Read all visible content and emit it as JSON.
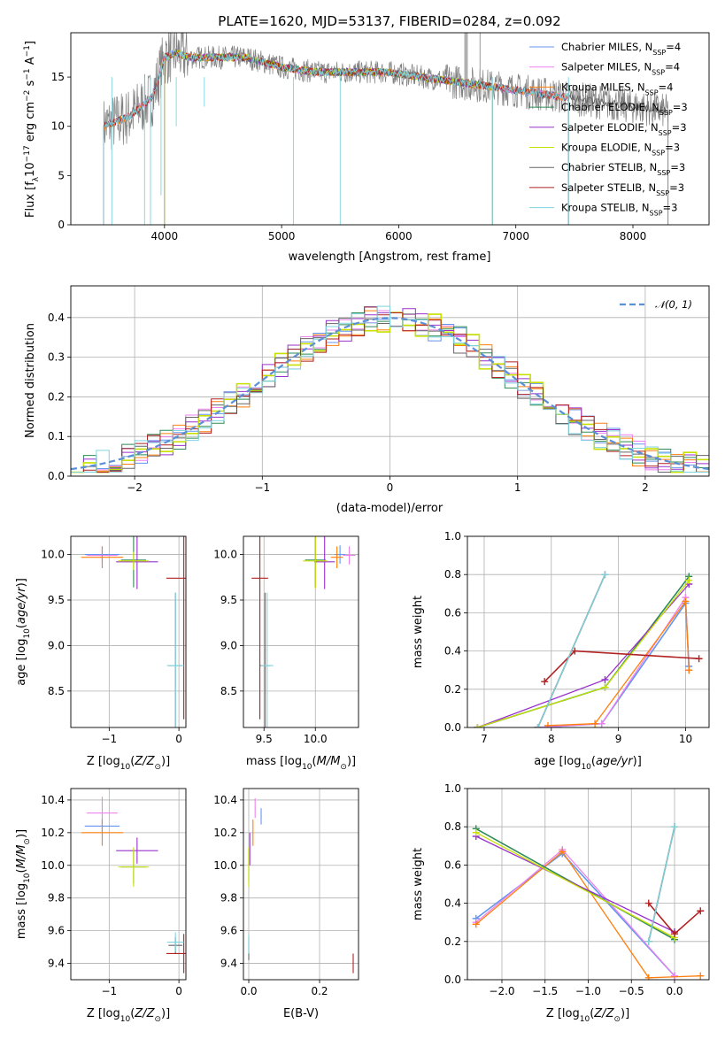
{
  "title": "PLATE=1620, MJD=53137, FIBERID=0284, z=0.092",
  "colors": {
    "Chabrier MILES": "#6495ed",
    "Salpeter MILES": "#ee82ee",
    "Kroupa MILES": "#ff7f0e",
    "Chabrier ELODIE": "#2e8b57",
    "Salpeter ELODIE": "#9932cc",
    "Kroupa ELODIE": "#c8e000",
    "Chabrier STELIB": "#666666",
    "Salpeter STELIB": "#b22222",
    "Kroupa STELIB": "#7fd3dd",
    "data": "#808080",
    "normal": "#5b8fd6"
  },
  "chart_data": [
    {
      "type": "line",
      "xlabel": "wavelength [Angstrom, rest frame]",
      "ylabel": "Flux [fλ10⁻¹⁷ erg cm⁻² s⁻¹ A⁻¹]",
      "xlim": [
        3200,
        8650
      ],
      "ylim": [
        0,
        19.5
      ],
      "xticks": [
        4000,
        5000,
        6000,
        7000,
        8000
      ],
      "yticks": [
        0,
        5,
        10,
        15
      ],
      "grid": false,
      "legend_position": "upper-right",
      "continuum_knots": {
        "x": [
          3480,
          3700,
          3900,
          4000,
          4100,
          4200,
          4400,
          4700,
          5000,
          5300,
          5600,
          5900,
          6200,
          6500,
          6800,
          7100,
          7400,
          7700,
          8000,
          8300
        ],
        "y": [
          10,
          11,
          13,
          17,
          17.5,
          17,
          17,
          17,
          16,
          15.5,
          15.5,
          15.5,
          15,
          14.5,
          14,
          13.5,
          13,
          12.5,
          12,
          11.5
        ]
      },
      "series": [
        {
          "name": "Chabrier MILES, N_SSP=4",
          "x_range": [
            3480,
            7450
          ]
        },
        {
          "name": "Salpeter MILES, N_SSP=4",
          "x_range": [
            3480,
            7450
          ]
        },
        {
          "name": "Kroupa MILES, N_SSP=4",
          "x_range": [
            3480,
            7450
          ]
        },
        {
          "name": "Chabrier ELODIE, N_SSP=3",
          "x_range": [
            4000,
            6800
          ]
        },
        {
          "name": "Salpeter ELODIE, N_SSP=3",
          "x_range": [
            4000,
            6800
          ]
        },
        {
          "name": "Kroupa ELODIE, N_SSP=3",
          "x_range": [
            4000,
            6800
          ]
        },
        {
          "name": "Chabrier STELIB, N_SSP=3",
          "x_range": [
            3480,
            8300
          ]
        },
        {
          "name": "Salpeter STELIB, N_SSP=3",
          "x_range": [
            3480,
            7450
          ]
        },
        {
          "name": "Kroupa STELIB, N_SSP=3",
          "x_range": [
            3480,
            7450
          ]
        }
      ]
    },
    {
      "type": "line",
      "xlabel": "(data-model)/error",
      "ylabel": "Normed distribution",
      "xlim": [
        -2.5,
        2.5
      ],
      "ylim": [
        0,
        0.48
      ],
      "xticks": [
        -2,
        -1,
        0,
        1,
        2
      ],
      "yticks": [
        0.0,
        0.1,
        0.2,
        0.3,
        0.4
      ],
      "grid": true,
      "legend": [
        "𝒩(0, 1)"
      ],
      "legend_position": "upper-right",
      "bin_width": 0.1,
      "histogram_series": [
        "Chabrier MILES",
        "Salpeter MILES",
        "Kroupa MILES",
        "Chabrier ELODIE",
        "Salpeter ELODIE",
        "Kroupa ELODIE",
        "Chabrier STELIB",
        "Salpeter STELIB",
        "Kroupa STELIB"
      ]
    },
    {
      "type": "scatter",
      "xlabel": "Z [log10(Z/Z⊙)]",
      "ylabel": "age  [log10(age/yr)]",
      "xlim": [
        -1.55,
        0.1
      ],
      "ylim": [
        8.1,
        10.2
      ],
      "xticks": [
        -1,
        0
      ],
      "yticks": [
        8.5,
        9.0,
        9.5,
        10.0
      ],
      "grid": true,
      "points": [
        {
          "model": "Chabrier MILES",
          "x": -1.1,
          "y": 10.0,
          "xerr": 0.25,
          "yerr": 0.05
        },
        {
          "model": "Salpeter MILES",
          "x": -1.1,
          "y": 9.99,
          "xerr": 0.22,
          "yerr": 0.1
        },
        {
          "model": "Kroupa MILES",
          "x": -1.1,
          "y": 9.97,
          "xerr": 0.3,
          "yerr": 0.12
        },
        {
          "model": "Chabrier ELODIE",
          "x": -0.65,
          "y": 9.94,
          "xerr": 0.18,
          "yerr": 0.3
        },
        {
          "model": "Salpeter ELODIE",
          "x": -0.6,
          "y": 9.92,
          "xerr": 0.3,
          "yerr": 0.3
        },
        {
          "model": "Kroupa ELODIE",
          "x": -0.65,
          "y": 9.93,
          "xerr": 0.22,
          "yerr": 0.1
        },
        {
          "model": "Chabrier STELIB",
          "x": -0.05,
          "y": 8.78,
          "xerr": 0.1,
          "yerr": 0.8
        },
        {
          "model": "Salpeter STELIB",
          "x": 0.07,
          "y": 9.74,
          "xerr": 0.25,
          "yerr": 1.55
        },
        {
          "model": "Kroupa STELIB",
          "x": -0.05,
          "y": 8.78,
          "xerr": 0.12,
          "yerr": 0.8
        }
      ]
    },
    {
      "type": "scatter",
      "xlabel": "mass [log10(M/M⊙)]",
      "ylabel": "",
      "xlim": [
        9.3,
        10.42
      ],
      "ylim": [
        8.1,
        10.2
      ],
      "xticks": [
        9.5,
        10.0
      ],
      "yticks": [
        8.5,
        9.0,
        9.5,
        10.0
      ],
      "grid": true,
      "points": [
        {
          "model": "Chabrier MILES",
          "x": 10.24,
          "y": 10.0,
          "xerr": 0.05,
          "yerr": 0.1
        },
        {
          "model": "Salpeter MILES",
          "x": 10.33,
          "y": 9.99,
          "xerr": 0.06,
          "yerr": 0.1
        },
        {
          "model": "Kroupa MILES",
          "x": 10.21,
          "y": 9.97,
          "xerr": 0.06,
          "yerr": 0.12
        },
        {
          "model": "Chabrier ELODIE",
          "x": 10.0,
          "y": 9.94,
          "xerr": 0.1,
          "yerr": 0.3
        },
        {
          "model": "Salpeter ELODIE",
          "x": 10.09,
          "y": 9.92,
          "xerr": 0.1,
          "yerr": 0.3
        },
        {
          "model": "Kroupa ELODIE",
          "x": 10.0,
          "y": 9.93,
          "xerr": 0.12,
          "yerr": 0.3
        },
        {
          "model": "Chabrier STELIB",
          "x": 9.51,
          "y": 8.78,
          "xerr": 0.05,
          "yerr": 0.8
        },
        {
          "model": "Salpeter STELIB",
          "x": 9.46,
          "y": 9.74,
          "xerr": 0.08,
          "yerr": 1.55
        },
        {
          "model": "Kroupa STELIB",
          "x": 9.53,
          "y": 8.78,
          "xerr": 0.06,
          "yerr": 0.8
        }
      ]
    },
    {
      "type": "line",
      "xlabel": "age  [log10(age/yr)]",
      "ylabel": "mass weight",
      "xlim": [
        6.75,
        10.35
      ],
      "ylim": [
        0.0,
        1.0
      ],
      "xticks": [
        7,
        8,
        9,
        10
      ],
      "yticks": [
        0.0,
        0.2,
        0.4,
        0.6,
        0.8,
        1.0
      ],
      "grid": true,
      "series": [
        {
          "name": "Chabrier MILES",
          "x": [
            7.8,
            8.75,
            10.0,
            10.05
          ],
          "y": [
            0.0,
            0.02,
            0.65,
            0.32
          ]
        },
        {
          "name": "Salpeter MILES",
          "x": [
            7.8,
            8.75,
            10.0,
            10.05
          ],
          "y": [
            0.0,
            0.02,
            0.68,
            0.3
          ]
        },
        {
          "name": "Kroupa MILES",
          "x": [
            7.95,
            8.65,
            10.0,
            10.05
          ],
          "y": [
            0.01,
            0.02,
            0.66,
            0.3
          ]
        },
        {
          "name": "Chabrier ELODIE",
          "x": [
            6.9,
            8.8,
            10.05
          ],
          "y": [
            0.0,
            0.21,
            0.79
          ]
        },
        {
          "name": "Salpeter ELODIE",
          "x": [
            6.9,
            8.8,
            10.05
          ],
          "y": [
            0.0,
            0.25,
            0.75
          ]
        },
        {
          "name": "Kroupa ELODIE",
          "x": [
            6.9,
            8.8,
            10.05
          ],
          "y": [
            0.0,
            0.21,
            0.77
          ]
        },
        {
          "name": "Chabrier STELIB",
          "x": [
            7.8,
            8.8
          ],
          "y": [
            0.0,
            0.8
          ]
        },
        {
          "name": "Salpeter STELIB",
          "x": [
            7.9,
            8.35,
            10.2
          ],
          "y": [
            0.24,
            0.4,
            0.36
          ]
        },
        {
          "name": "Kroupa STELIB",
          "x": [
            7.8,
            8.8
          ],
          "y": [
            0.0,
            0.8
          ]
        }
      ]
    },
    {
      "type": "scatter",
      "xlabel": "Z [log10(Z/Z⊙)]",
      "ylabel": "mass [log10(M/M⊙)]",
      "xlim": [
        -1.55,
        0.1
      ],
      "ylim": [
        9.3,
        10.47
      ],
      "xticks": [
        -1,
        0
      ],
      "yticks": [
        9.4,
        9.6,
        9.8,
        10.0,
        10.2,
        10.4
      ],
      "grid": true,
      "points": [
        {
          "model": "Chabrier MILES",
          "x": -1.1,
          "y": 10.24,
          "xerr": 0.25,
          "yerr": 0.05
        },
        {
          "model": "Salpeter MILES",
          "x": -1.1,
          "y": 10.32,
          "xerr": 0.22,
          "yerr": 0.1
        },
        {
          "model": "Kroupa MILES",
          "x": -1.1,
          "y": 10.2,
          "xerr": 0.3,
          "yerr": 0.08
        },
        {
          "model": "Chabrier ELODIE",
          "x": -0.65,
          "y": 9.99,
          "xerr": 0.18,
          "yerr": 0.1
        },
        {
          "model": "Salpeter ELODIE",
          "x": -0.6,
          "y": 10.09,
          "xerr": 0.3,
          "yerr": 0.08
        },
        {
          "model": "Kroupa ELODIE",
          "x": -0.65,
          "y": 9.99,
          "xerr": 0.22,
          "yerr": 0.12
        },
        {
          "model": "Chabrier STELIB",
          "x": -0.05,
          "y": 9.51,
          "xerr": 0.1,
          "yerr": 0.05
        },
        {
          "model": "Salpeter STELIB",
          "x": 0.07,
          "y": 9.46,
          "xerr": 0.25,
          "yerr": 0.12
        },
        {
          "model": "Kroupa STELIB",
          "x": -0.05,
          "y": 9.53,
          "xerr": 0.12,
          "yerr": 0.06
        }
      ]
    },
    {
      "type": "scatter",
      "xlabel": "E(B-V)",
      "ylabel": "",
      "xlim": [
        -0.015,
        0.31
      ],
      "ylim": [
        9.3,
        10.47
      ],
      "xticks": [
        0.0,
        0.2
      ],
      "yticks": [
        9.4,
        9.6,
        9.8,
        10.0,
        10.2,
        10.4
      ],
      "grid": true,
      "points": [
        {
          "model": "Chabrier MILES",
          "x": 0.035,
          "y": 10.3,
          "yerr": 0.05
        },
        {
          "model": "Salpeter MILES",
          "x": 0.018,
          "y": 10.35,
          "yerr": 0.06
        },
        {
          "model": "Kroupa MILES",
          "x": 0.012,
          "y": 10.2,
          "yerr": 0.08
        },
        {
          "model": "Chabrier ELODIE",
          "x": 0.0,
          "y": 10.0,
          "yerr": 0.1
        },
        {
          "model": "Salpeter ELODIE",
          "x": 0.003,
          "y": 10.1,
          "yerr": 0.1
        },
        {
          "model": "Kroupa ELODIE",
          "x": 0.0,
          "y": 9.99,
          "yerr": 0.12
        },
        {
          "model": "Chabrier STELIB",
          "x": 0.0,
          "y": 9.49,
          "yerr": 0.07
        },
        {
          "model": "Salpeter STELIB",
          "x": 0.295,
          "y": 9.4,
          "yerr": 0.06
        },
        {
          "model": "Kroupa STELIB",
          "x": 0.0,
          "y": 9.52,
          "yerr": 0.06
        }
      ]
    },
    {
      "type": "line",
      "xlabel": "Z [log10(Z/Z⊙)]",
      "ylabel": "mass weight",
      "xlim": [
        -2.4,
        0.4
      ],
      "ylim": [
        0.0,
        1.0
      ],
      "xticks": [
        -2.0,
        -1.5,
        -1.0,
        -0.5,
        0.0
      ],
      "yticks": [
        0.0,
        0.2,
        0.4,
        0.6,
        0.8,
        1.0
      ],
      "grid": true,
      "series": [
        {
          "name": "Chabrier MILES",
          "x": [
            -2.3,
            -1.3,
            0.0
          ],
          "y": [
            0.32,
            0.66,
            0.02
          ]
        },
        {
          "name": "Salpeter MILES",
          "x": [
            -2.3,
            -1.3,
            0.0
          ],
          "y": [
            0.3,
            0.68,
            0.02
          ]
        },
        {
          "name": "Kroupa MILES",
          "x": [
            -2.3,
            -1.3,
            -0.3,
            0.3
          ],
          "y": [
            0.29,
            0.67,
            0.01,
            0.02
          ]
        },
        {
          "name": "Chabrier ELODIE",
          "x": [
            -2.3,
            0.0
          ],
          "y": [
            0.79,
            0.21
          ]
        },
        {
          "name": "Salpeter ELODIE",
          "x": [
            -2.3,
            0.0
          ],
          "y": [
            0.75,
            0.25
          ]
        },
        {
          "name": "Kroupa ELODIE",
          "x": [
            -2.3,
            0.0
          ],
          "y": [
            0.77,
            0.22
          ]
        },
        {
          "name": "Chabrier STELIB",
          "x": [
            -0.3,
            0.0
          ],
          "y": [
            0.2,
            0.8
          ]
        },
        {
          "name": "Salpeter STELIB",
          "x": [
            -0.3,
            0.0,
            0.3
          ],
          "y": [
            0.4,
            0.24,
            0.36
          ]
        },
        {
          "name": "Kroupa STELIB",
          "x": [
            -0.3,
            0.0
          ],
          "y": [
            0.2,
            0.8
          ]
        }
      ]
    }
  ]
}
